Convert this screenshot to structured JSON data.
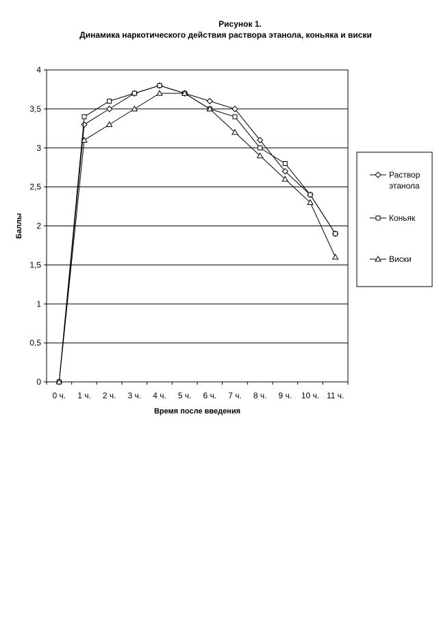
{
  "figure": {
    "label": "Рисунок 1.",
    "title": "Динамика наркотического действия раствора этанола, коньяка и виски"
  },
  "chart_data": {
    "type": "line",
    "title": "Динамика наркотического действия раствора этанола, коньяка и виски",
    "xlabel": "Время после введения",
    "ylabel": "Баллы",
    "categories": [
      "0 ч.",
      "1 ч.",
      "2 ч.",
      "3 ч.",
      "4 ч.",
      "5 ч.",
      "6 ч.",
      "7 ч.",
      "8 ч.",
      "9 ч.",
      "10 ч.",
      "11 ч."
    ],
    "ylim": [
      0,
      4
    ],
    "yticks": [
      "0",
      "0,5",
      "1",
      "1,5",
      "2",
      "2,5",
      "3",
      "3,5",
      "4"
    ],
    "grid": true,
    "legend_position": "right",
    "series": [
      {
        "name": "Раствор этанола",
        "legend_lines": [
          "Раствор",
          "этанола"
        ],
        "marker": "diamond",
        "values": [
          0,
          3.3,
          3.5,
          3.7,
          3.8,
          3.7,
          3.6,
          3.5,
          3.1,
          2.7,
          2.4,
          1.9
        ]
      },
      {
        "name": "Коньяк",
        "legend_lines": [
          "Коньяк"
        ],
        "marker": "square",
        "values": [
          0,
          3.4,
          3.6,
          3.7,
          3.8,
          3.7,
          3.5,
          3.4,
          3.0,
          2.8,
          2.4,
          1.9
        ]
      },
      {
        "name": "Виски",
        "legend_lines": [
          "Виски"
        ],
        "marker": "triangle",
        "values": [
          0,
          3.1,
          3.3,
          3.5,
          3.7,
          3.7,
          3.5,
          3.2,
          2.9,
          2.6,
          2.3,
          1.6
        ]
      }
    ]
  }
}
